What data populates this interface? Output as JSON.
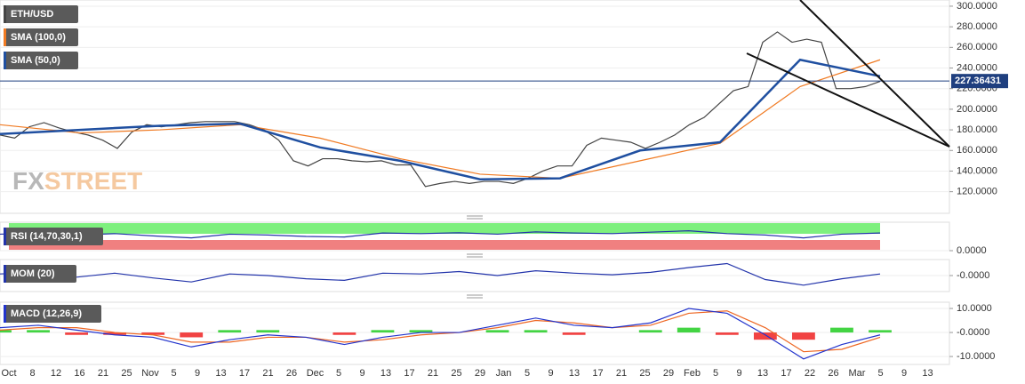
{
  "chart_data": [
    {
      "type": "line",
      "ylim": [
        99,
        306
      ],
      "yticks": [
        {
          "value": 300,
          "label": "300.0000"
        },
        {
          "value": 280,
          "label": "280.0000"
        },
        {
          "value": 260,
          "label": "260.0000"
        },
        {
          "value": 240,
          "label": "240.0000"
        },
        {
          "value": 220,
          "label": "220.0000"
        },
        {
          "value": 200,
          "label": "200.0000"
        },
        {
          "value": 180,
          "label": "180.0000"
        },
        {
          "value": 160,
          "label": "160.0000"
        },
        {
          "value": 140,
          "label": "140.0000"
        },
        {
          "value": 120,
          "label": "120.0000"
        }
      ],
      "last_price": 227.36431,
      "series": [
        {
          "name": "ETH/USD",
          "color": "#444444",
          "values": [
            175,
            172,
            183,
            187,
            182,
            178,
            175,
            170,
            162,
            178,
            185,
            183,
            185,
            187,
            188,
            188,
            188,
            185,
            180,
            170,
            150,
            145,
            152,
            152,
            150,
            149,
            150,
            146,
            146,
            125,
            128,
            130,
            128,
            130,
            130,
            128,
            133,
            140,
            145,
            145,
            165,
            172,
            170,
            168,
            162,
            168,
            175,
            185,
            192,
            205,
            218,
            222,
            265,
            275,
            265,
            268,
            265,
            220,
            220,
            222,
            227
          ]
        },
        {
          "name": "SMA (100,0)",
          "color": "#f07a22",
          "values": [
            185,
            177,
            180,
            185,
            172,
            152,
            137,
            133,
            150,
            167,
            222,
            248
          ]
        },
        {
          "name": "SMA (50,0)",
          "color": "#1f4fa0",
          "values": [
            176,
            180,
            184,
            186,
            163,
            150,
            132,
            133,
            160,
            168,
            248,
            232
          ]
        }
      ]
    },
    {
      "type": "line",
      "ylim": [
        0,
        100
      ],
      "yticks": [
        {
          "value": 0,
          "label": "0.0000"
        }
      ],
      "series": [
        {
          "name": "RSI (14,70,30,1)",
          "color": "#2233aa",
          "values": [
            58,
            62,
            55,
            60,
            52,
            45,
            58,
            55,
            50,
            48,
            62,
            60,
            63,
            58,
            66,
            62,
            60,
            65,
            70,
            60,
            55,
            45,
            58,
            62
          ]
        }
      ]
    },
    {
      "type": "line",
      "ylim": [
        -20,
        20
      ],
      "yticks": [
        {
          "value": 0,
          "label": "-0.0000"
        }
      ],
      "series": [
        {
          "name": "MOM (20)",
          "color": "#2233aa",
          "values": [
            2,
            4,
            -2,
            3,
            -3,
            -8,
            2,
            0,
            -4,
            -6,
            3,
            2,
            5,
            0,
            6,
            3,
            1,
            4,
            10,
            15,
            -5,
            -12,
            -4,
            2
          ]
        }
      ]
    },
    {
      "type": "macd",
      "title": "MACD (12,26,9)",
      "ylim": [
        -13.3,
        12.6
      ],
      "yticks": [
        {
          "value": 10,
          "label": "10.0000"
        },
        {
          "value": 0,
          "label": "-0.0000"
        },
        {
          "value": -10,
          "label": "-10.0000"
        }
      ],
      "macd": {
        "color": "#2233cc",
        "values": [
          2,
          3,
          1,
          -1,
          -2,
          -6,
          -3,
          -1,
          -2,
          -5,
          -2,
          0,
          0,
          3,
          6,
          3,
          2,
          4,
          10,
          8,
          -1,
          -11,
          -5,
          -1
        ]
      },
      "signal": {
        "color": "#ee6622",
        "values": [
          1,
          2,
          2,
          0,
          -1,
          -4,
          -4,
          -2,
          -2,
          -4,
          -3,
          -1,
          0,
          2,
          5,
          4,
          2,
          3,
          8,
          9,
          2,
          -8,
          -7,
          -2
        ]
      },
      "histogram": {
        "color": "#22cc22",
        "negative_color": "#ee2222",
        "values": [
          1,
          1,
          -1,
          -1,
          -1,
          -2,
          1,
          1,
          0,
          -1,
          1,
          1,
          0,
          1,
          1,
          -1,
          0,
          1,
          2,
          -1,
          -3,
          -3,
          2,
          1
        ]
      },
      "x_labels": [
        "Oct",
        "8",
        "12",
        "16",
        "21",
        "25",
        "Nov",
        "5",
        "9",
        "13",
        "17",
        "21",
        "26",
        "Dec",
        "5",
        "9",
        "13",
        "17",
        "21",
        "25",
        "29",
        "Jan",
        "5",
        "9",
        "13",
        "17",
        "21",
        "25",
        "29",
        "Feb",
        "5",
        "9",
        "13",
        "17",
        "22",
        "26",
        "Mar",
        "5",
        "9",
        "13"
      ]
    }
  ],
  "watermark": {
    "fx": "FX",
    "street": "STREET"
  }
}
